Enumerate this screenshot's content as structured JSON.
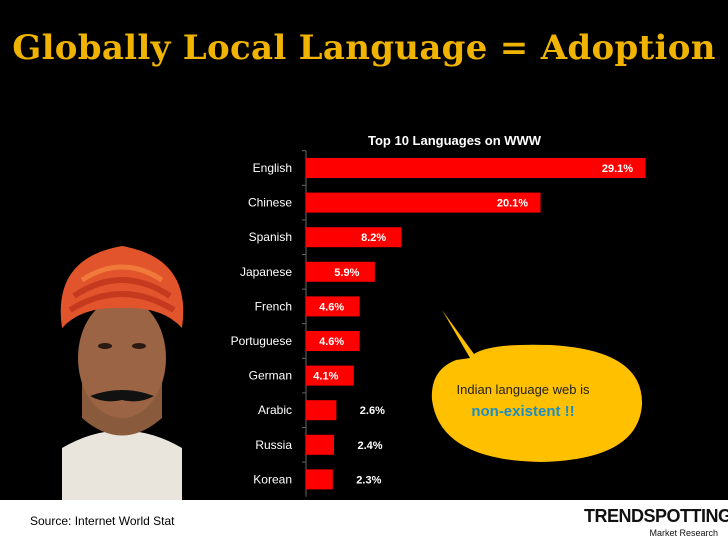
{
  "slide": {
    "title": "Globally Local Language = Adoption",
    "source": "Source: Internet World Stat"
  },
  "callout": {
    "text": "Indian language web is",
    "emphasis": "non-existent !!"
  },
  "logo": {
    "main": "TRENDSPOTTING.",
    "sub": "Market Research"
  },
  "colors": {
    "background": "#000000",
    "title": "#f0b400",
    "bar": "#ff0000",
    "callout_fill": "#ffc000",
    "callout_emphasis": "#1b8ec8"
  },
  "chart_data": {
    "type": "bar",
    "orientation": "horizontal",
    "title": "Top 10 Languages on WWW",
    "categories": [
      "English",
      "Chinese",
      "Spanish",
      "Japanese",
      "French",
      "Portuguese",
      "German",
      "Arabic",
      "Russia",
      "Korean"
    ],
    "values": [
      29.1,
      20.1,
      8.2,
      5.9,
      4.6,
      4.6,
      4.1,
      2.6,
      2.4,
      2.3
    ],
    "data_labels": [
      "29.1%",
      "20.1%",
      "8.2%",
      "5.9%",
      "4.6%",
      "4.6%",
      "4.1%",
      "2.6%",
      "2.4%",
      "2.3%"
    ],
    "xlim": [
      0,
      30
    ],
    "grid": false,
    "legend": "none"
  }
}
